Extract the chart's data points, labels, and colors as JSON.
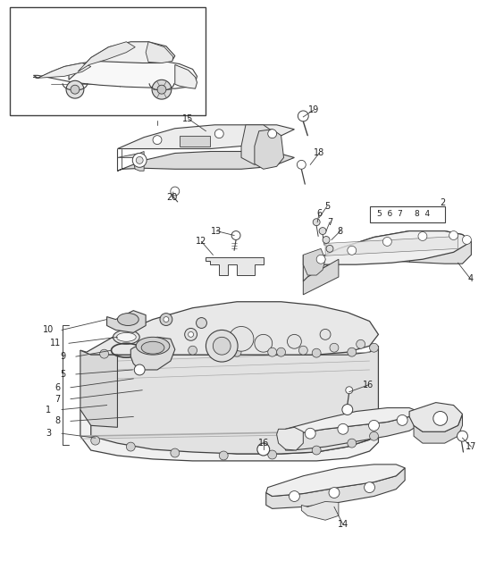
{
  "bg_color": "#ffffff",
  "line_color": "#404040",
  "text_color": "#222222",
  "fig_width": 5.45,
  "fig_height": 6.28,
  "dpi": 100
}
